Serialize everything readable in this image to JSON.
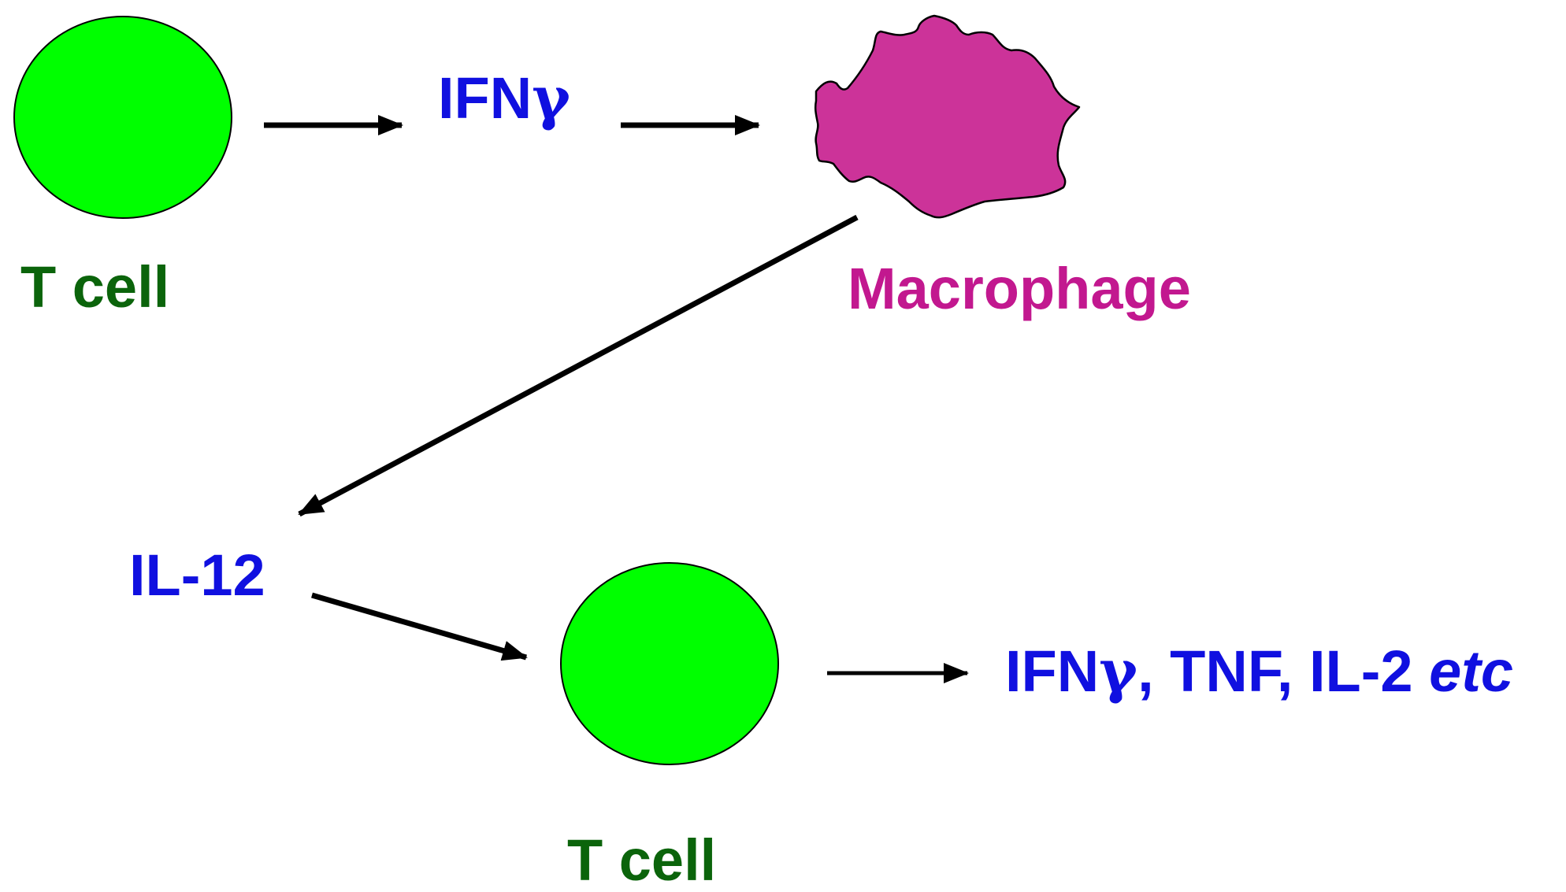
{
  "colors": {
    "t_cell_fill": "#00ff00",
    "t_cell_label": "#0b640b",
    "macrophage_fill": "#cc3399",
    "macrophage_label": "#c2188f",
    "cytokine_label": "#1010e0",
    "arrow": "#000000"
  },
  "nodes": {
    "t_cell_top": {
      "label": "T cell",
      "icon": "t-cell-circle-icon"
    },
    "ifn_gamma": {
      "label_main": "IFN",
      "label_greek": "γ"
    },
    "macrophage": {
      "label": "Macrophage",
      "icon": "macrophage-blob-icon"
    },
    "il12": {
      "label": "IL-12"
    },
    "t_cell_bottom": {
      "label": "T cell",
      "icon": "t-cell-circle-icon"
    },
    "outputs": {
      "ifn_main": "IFN",
      "ifn_greek": "γ",
      "rest": ", TNF, IL-2 ",
      "etc": "etc"
    }
  },
  "edges": [
    {
      "from": "t_cell_top",
      "to": "ifn_gamma"
    },
    {
      "from": "ifn_gamma",
      "to": "macrophage"
    },
    {
      "from": "macrophage",
      "to": "il12"
    },
    {
      "from": "il12",
      "to": "t_cell_bottom"
    },
    {
      "from": "t_cell_bottom",
      "to": "outputs"
    }
  ]
}
